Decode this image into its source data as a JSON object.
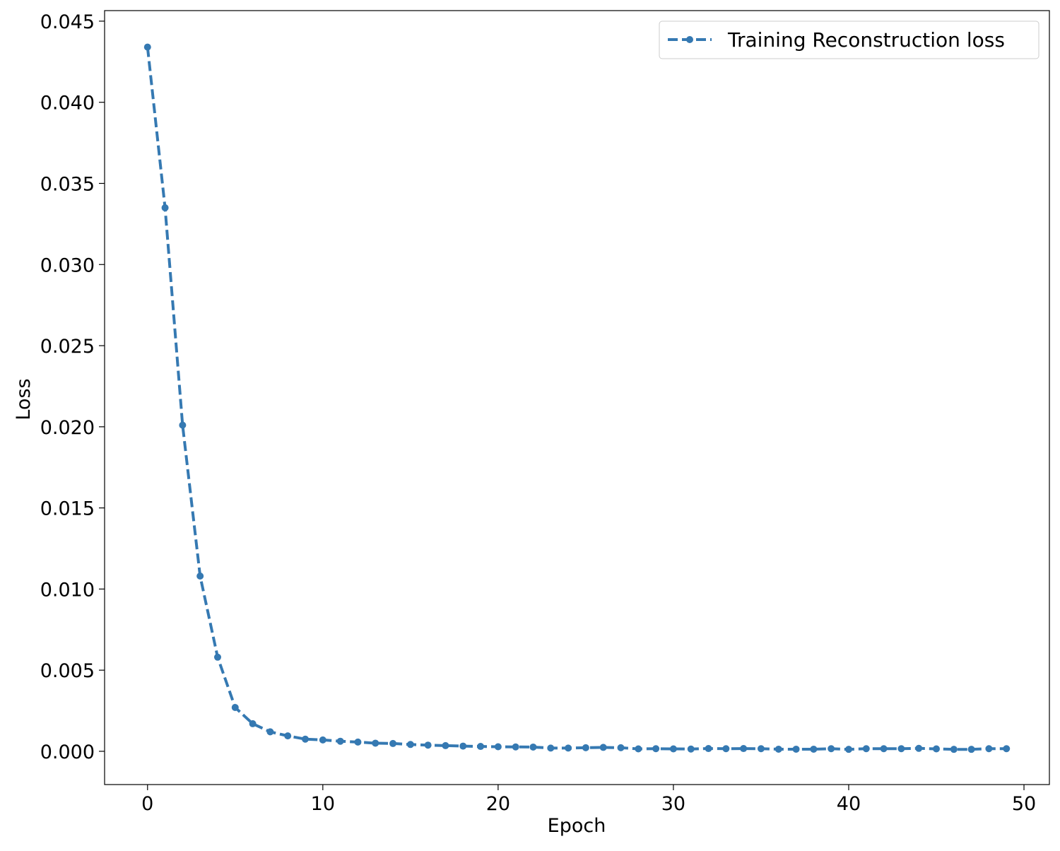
{
  "chart_data": {
    "type": "line",
    "title": "",
    "xlabel": "Epoch",
    "ylabel": "Loss",
    "xlim": [
      -2.45,
      51.45
    ],
    "ylim": [
      -0.00205,
      0.04565
    ],
    "xticks": [
      0,
      10,
      20,
      30,
      40,
      50
    ],
    "xtick_labels": [
      "0",
      "10",
      "20",
      "30",
      "40",
      "50"
    ],
    "yticks": [
      0.0,
      0.005,
      0.01,
      0.015,
      0.02,
      0.025,
      0.03,
      0.035,
      0.04,
      0.045
    ],
    "ytick_labels": [
      "0.000",
      "0.005",
      "0.010",
      "0.015",
      "0.020",
      "0.025",
      "0.030",
      "0.035",
      "0.040",
      "0.045"
    ],
    "grid": false,
    "legend": {
      "position": "top-right"
    },
    "series": [
      {
        "name": "Training Reconstruction loss",
        "color": "#3579b2",
        "line_style": "dashed",
        "marker": "circle",
        "x": [
          0,
          1,
          2,
          3,
          4,
          5,
          6,
          7,
          8,
          9,
          10,
          11,
          12,
          13,
          14,
          15,
          16,
          17,
          18,
          19,
          20,
          21,
          22,
          23,
          24,
          25,
          26,
          27,
          28,
          29,
          30,
          31,
          32,
          33,
          34,
          35,
          36,
          37,
          38,
          39,
          40,
          41,
          42,
          43,
          44,
          45,
          46,
          47,
          48,
          49
        ],
        "values": [
          0.0434,
          0.0335,
          0.0201,
          0.0108,
          0.0058,
          0.0027,
          0.0017,
          0.0012,
          0.00095,
          0.00075,
          0.0007,
          0.00062,
          0.00057,
          0.0005,
          0.00048,
          0.00042,
          0.00038,
          0.00035,
          0.00032,
          0.0003,
          0.00028,
          0.00027,
          0.00026,
          0.0002,
          0.0002,
          0.00022,
          0.00024,
          0.00022,
          0.00015,
          0.00016,
          0.00015,
          0.00014,
          0.00017,
          0.00016,
          0.00017,
          0.00016,
          0.00013,
          0.00013,
          0.00013,
          0.00016,
          0.00012,
          0.00016,
          0.00016,
          0.00016,
          0.00018,
          0.00015,
          0.00012,
          0.00012,
          0.00016,
          0.00016
        ]
      }
    ]
  }
}
